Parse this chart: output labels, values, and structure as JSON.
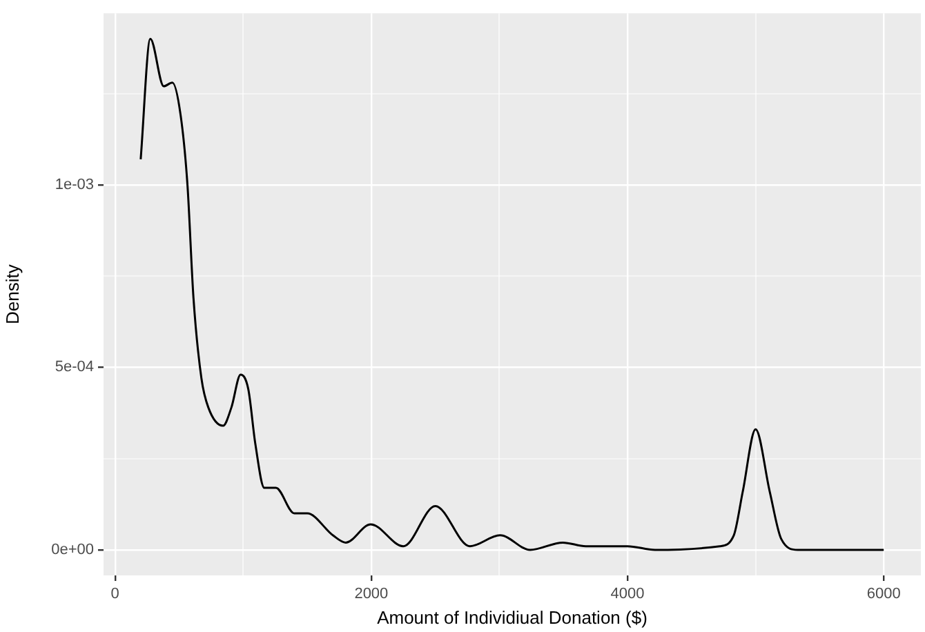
{
  "chart_data": {
    "type": "line",
    "xlabel": "Amount of Individiual Donation ($)",
    "ylabel": "Density",
    "series": [
      {
        "color": "#000000",
        "x": [
          200,
          275,
          380,
          447,
          512,
          565,
          612,
          674,
          728,
          843,
          908,
          980,
          1040,
          1095,
          1165,
          1255,
          1400,
          1500,
          1700,
          1800,
          1995,
          2250,
          2500,
          2770,
          3005,
          3240,
          3495,
          3675,
          4000,
          4215,
          4720,
          4830,
          4900,
          5000,
          5110,
          5200,
          5330,
          6000
        ],
        "values": [
          0.00107,
          0.0014,
          0.00127,
          0.00128,
          0.00119,
          0.001,
          0.00069,
          0.00047,
          0.00039,
          0.00034,
          0.00039,
          0.00048,
          0.00044,
          0.00029,
          0.00017,
          0.00017,
          0.0001,
          0.0001,
          4e-05,
          2e-05,
          7e-05,
          1e-05,
          0.00012,
          1e-05,
          4e-05,
          0,
          2e-05,
          1e-05,
          1e-05,
          0,
          1e-05,
          4e-05,
          0.00016,
          0.00033,
          0.00016,
          3e-05,
          0,
          0
        ]
      }
    ],
    "xlim": [
      -90,
      6290
    ],
    "xticks": [
      0,
      {
        "value": 1000,
        "label": null
      },
      2000,
      {
        "value": 3000,
        "label": null
      },
      4000,
      {
        "value": 5000,
        "label": null
      },
      6000
    ],
    "ylim": [
      -7e-05,
      0.00147
    ],
    "yticks": [
      {
        "value": 0,
        "label": "0e+00"
      },
      {
        "value": 0.00025,
        "label": null
      },
      {
        "value": 0.0005,
        "label": "5e-04"
      },
      {
        "value": 0.00075,
        "label": null
      },
      {
        "value": 0.001,
        "label": "1e-03"
      },
      {
        "value": 0.00125,
        "label": null
      }
    ],
    "grid": true,
    "legend": false,
    "marker": "none",
    "line_style": "solid"
  }
}
